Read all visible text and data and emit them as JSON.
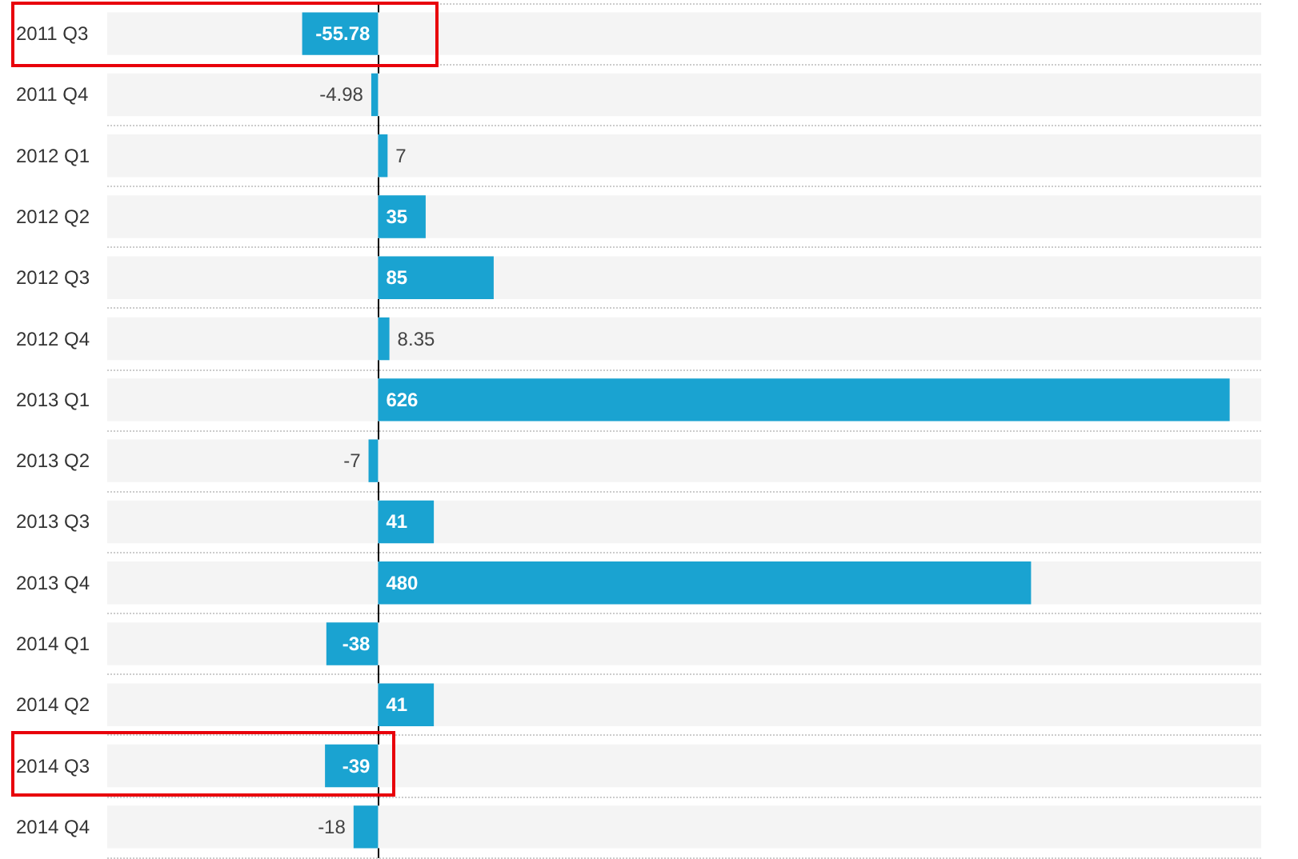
{
  "chart_data": {
    "type": "bar",
    "orientation": "horizontal",
    "data_labels": true,
    "color": "#1aa3d1",
    "categories": [
      "2011 Q3",
      "2011 Q4",
      "2012 Q1",
      "2012 Q2",
      "2012 Q3",
      "2012 Q4",
      "2013 Q1",
      "2013 Q2",
      "2013 Q3",
      "2013 Q4",
      "2014 Q1",
      "2014 Q2",
      "2014 Q3",
      "2014 Q4"
    ],
    "values": [
      -55.78,
      -4.98,
      7,
      35,
      85,
      8.35,
      626,
      -7,
      41,
      480,
      -38,
      41,
      -39,
      -18
    ]
  }
}
